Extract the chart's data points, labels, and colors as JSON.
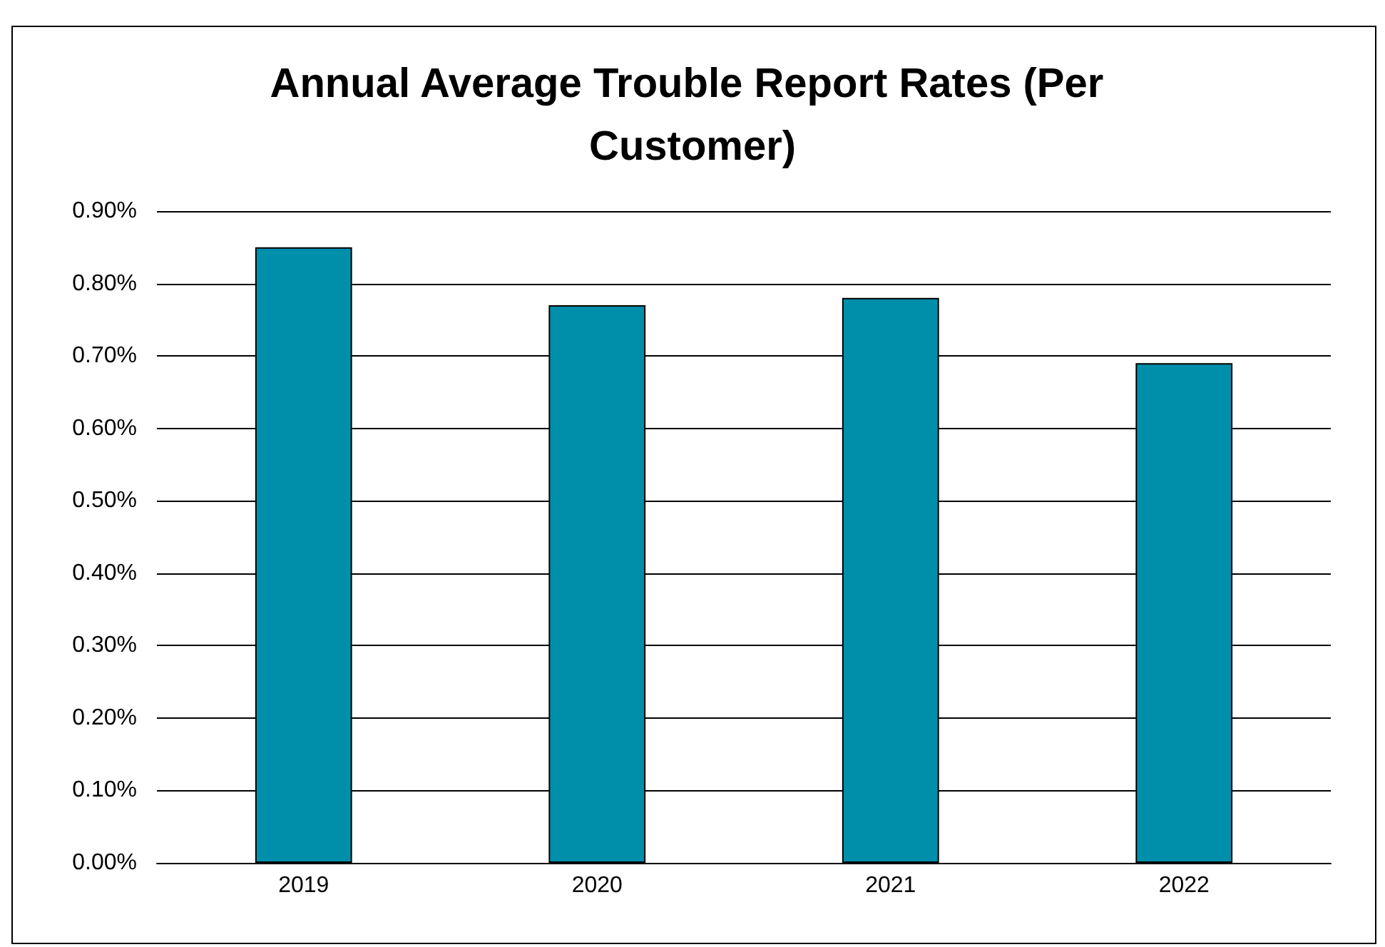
{
  "chart_data": {
    "type": "bar",
    "title": "Annual Average Trouble Report Rates (Per Customer)",
    "categories": [
      "2019",
      "2020",
      "2021",
      "2022"
    ],
    "values": [
      0.85,
      0.77,
      0.78,
      0.69
    ],
    "color": "#008fab",
    "ylim": [
      0,
      0.9
    ],
    "yticks": [
      {
        "value": 0,
        "label": "0.00%"
      },
      {
        "value": 0.1,
        "label": "0.10%"
      },
      {
        "value": 0.2,
        "label": "0.20%"
      },
      {
        "value": 0.3,
        "label": "0.30%"
      },
      {
        "value": 0.4,
        "label": "0.40%"
      },
      {
        "value": 0.5,
        "label": "0.50%"
      },
      {
        "value": 0.6,
        "label": "0.60%"
      },
      {
        "value": 0.7,
        "label": "0.70%"
      },
      {
        "value": 0.8,
        "label": "0.80%"
      },
      {
        "value": 0.9,
        "label": "0.90%"
      }
    ],
    "grid": "y"
  }
}
